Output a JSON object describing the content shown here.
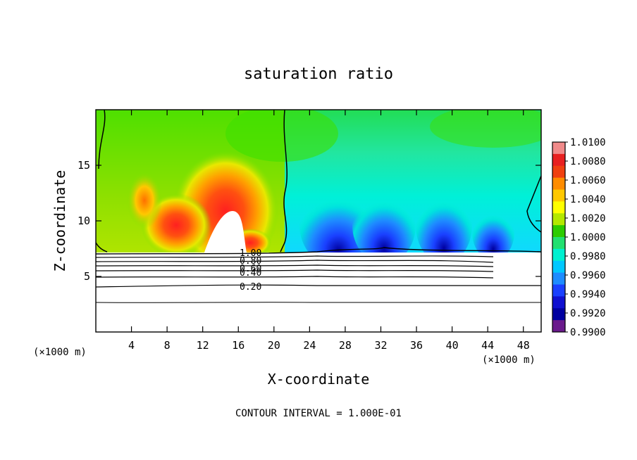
{
  "chart_data": {
    "type": "heatmap",
    "title": "saturation ratio",
    "xlabel": "X-coordinate",
    "ylabel": "Z-coordinate",
    "x_unit_left": "(×1000 m)",
    "x_unit_right": "(×1000 m)",
    "xlim": [
      0,
      50
    ],
    "ylim": [
      0,
      20
    ],
    "x_ticks": [
      4,
      8,
      12,
      16,
      20,
      24,
      28,
      32,
      36,
      40,
      44,
      48
    ],
    "y_ticks": [
      5,
      10,
      15
    ],
    "footer": "CONTOUR INTERVAL = 1.000E-01",
    "colorbar": {
      "labels": [
        "1.0100",
        "1.0080",
        "1.0060",
        "1.0040",
        "1.0020",
        "1.0000",
        "0.9980",
        "0.9960",
        "0.9940",
        "0.9920",
        "0.9900"
      ],
      "colors_top_to_bottom": [
        "#f08a8a",
        "#e82020",
        "#f04010",
        "#ff8c00",
        "#ffc800",
        "#ffff00",
        "#b4e800",
        "#2ccc00",
        "#22e070",
        "#00f0d0",
        "#00c8ff",
        "#1e8cff",
        "#1a40ff",
        "#1010d0",
        "#0000a0",
        "#6a1a8c"
      ]
    },
    "contour_labels": [
      "1.00",
      "0.80",
      "0.60",
      "0.40",
      "0.20"
    ],
    "annotations": {
      "terrain_top_z": 7.2
    }
  }
}
